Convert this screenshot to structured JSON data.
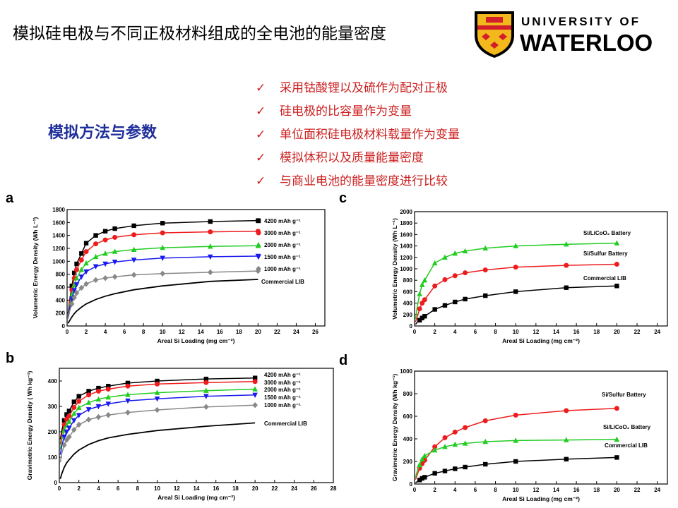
{
  "slide": {
    "title": "模拟硅电极与不同正极材料组成的全电池的能量密度",
    "subtitle": "模拟方法与参数",
    "bullets": [
      "采用钴酸锂以及硫作为配对正极",
      "硅电极的比容量作为变量",
      "单位面积硅电极材料载量作为变量",
      "模拟体积以及质量能量密度",
      "与商业电池的能量密度进行比较"
    ],
    "check_mark": "✓",
    "logo": {
      "line1": "UNIVERSITY OF",
      "line2": "WATERLOO",
      "shield_gold": "#f2b81c",
      "shield_red": "#d21f2b",
      "shield_black": "#000000"
    },
    "panel_letters": [
      "a",
      "b",
      "c",
      "d"
    ]
  },
  "chart_data": [
    {
      "type": "line",
      "panel": "a",
      "xlabel": "Areal Si Loading (mg cm⁻²)",
      "ylabel": "Volumetric Energy Density (Wh L⁻¹)",
      "xlim": [
        0,
        27
      ],
      "ylim": [
        0,
        1800
      ],
      "xticks": [
        0,
        2,
        4,
        6,
        8,
        10,
        12,
        14,
        16,
        18,
        20,
        22,
        24,
        26
      ],
      "yticks": [
        0,
        200,
        400,
        600,
        800,
        1000,
        1200,
        1400,
        1600,
        1800
      ],
      "x": [
        0.1,
        0.25,
        0.5,
        0.75,
        1,
        1.5,
        2,
        3,
        4,
        5,
        7,
        10,
        15,
        20
      ],
      "series": [
        {
          "name": "4200 mAh g⁻¹",
          "color": "#000000",
          "marker": "square",
          "values": [
            200,
            380,
            620,
            820,
            960,
            1120,
            1280,
            1400,
            1465,
            1505,
            1550,
            1590,
            1615,
            1630
          ]
        },
        {
          "name": "3000 mAh g⁻¹",
          "color": "#ee1c1c",
          "marker": "circle",
          "values": [
            180,
            340,
            560,
            740,
            870,
            1020,
            1150,
            1270,
            1330,
            1370,
            1410,
            1440,
            1455,
            1465
          ]
        },
        {
          "name": "2000 mAh g⁻¹",
          "color": "#22cc22",
          "marker": "triangle",
          "values": [
            160,
            300,
            480,
            630,
            740,
            870,
            970,
            1070,
            1120,
            1150,
            1180,
            1210,
            1230,
            1240
          ]
        },
        {
          "name": "1500 mAh g⁻¹",
          "color": "#1a1aee",
          "marker": "tridown",
          "values": [
            140,
            270,
            420,
            550,
            640,
            760,
            840,
            920,
            960,
            990,
            1020,
            1050,
            1070,
            1080
          ]
        },
        {
          "name": "1000 mAh g⁻¹",
          "color": "#888888",
          "marker": "diamond",
          "values": [
            110,
            220,
            340,
            440,
            510,
            590,
            650,
            710,
            740,
            760,
            790,
            810,
            830,
            850
          ]
        },
        {
          "name": "Commercial LIB",
          "color": "#000000",
          "marker": "none",
          "values": [
            40,
            80,
            140,
            190,
            230,
            290,
            340,
            410,
            460,
            500,
            560,
            620,
            690,
            720
          ]
        }
      ]
    },
    {
      "type": "line",
      "panel": "b",
      "xlabel": "Areal Si Loading (mg cm⁻²)",
      "ylabel": "Gravimetric Energy Density ( Wh kg⁻¹)",
      "xlim": [
        0,
        28
      ],
      "ylim": [
        0,
        450
      ],
      "xticks": [
        0,
        2,
        4,
        6,
        8,
        10,
        12,
        14,
        16,
        18,
        20,
        22,
        24,
        26,
        28
      ],
      "yticks": [
        0,
        100,
        200,
        300,
        400
      ],
      "x": [
        0.1,
        0.25,
        0.5,
        0.75,
        1,
        1.5,
        2,
        3,
        4,
        5,
        7,
        10,
        15,
        20
      ],
      "series": [
        {
          "name": "4200 mAh g⁻¹",
          "color": "#000000",
          "marker": "square",
          "values": [
            170,
            205,
            245,
            268,
            282,
            318,
            340,
            360,
            372,
            380,
            392,
            400,
            408,
            412
          ]
        },
        {
          "name": "3000 mAh g⁻¹",
          "color": "#ee1c1c",
          "marker": "circle",
          "values": [
            150,
            190,
            228,
            250,
            262,
            296,
            320,
            345,
            360,
            368,
            380,
            388,
            394,
            398
          ]
        },
        {
          "name": "2000 mAh g⁻¹",
          "color": "#22cc22",
          "marker": "triangle",
          "values": [
            130,
            168,
            205,
            225,
            240,
            272,
            295,
            315,
            328,
            336,
            346,
            354,
            362,
            368
          ]
        },
        {
          "name": "1500 mAh g⁻¹",
          "color": "#1a1aee",
          "marker": "tridown",
          "values": [
            110,
            145,
            180,
            200,
            215,
            245,
            265,
            288,
            300,
            310,
            322,
            330,
            340,
            345
          ]
        },
        {
          "name": "1000 mAh g⁻¹",
          "color": "#888888",
          "marker": "diamond",
          "values": [
            80,
            115,
            148,
            168,
            180,
            208,
            228,
            248,
            258,
            266,
            276,
            286,
            298,
            305
          ]
        },
        {
          "name": "Commercial LIB",
          "color": "#000000",
          "marker": "none",
          "values": [
            15,
            35,
            60,
            78,
            90,
            112,
            128,
            150,
            165,
            176,
            190,
            205,
            222,
            235
          ]
        }
      ]
    },
    {
      "type": "line",
      "panel": "c",
      "xlabel": "Areal Si Loading (mg cm⁻²)",
      "ylabel": "Volumetric Energy Density (Wh L⁻¹)",
      "xlim": [
        0,
        25
      ],
      "ylim": [
        0,
        2000
      ],
      "xticks": [
        0,
        2,
        4,
        6,
        8,
        10,
        12,
        14,
        16,
        18,
        20,
        22,
        24
      ],
      "yticks": [
        0,
        200,
        400,
        600,
        800,
        1000,
        1200,
        1400,
        1600,
        1800,
        2000
      ],
      "x": [
        0.1,
        0.25,
        0.5,
        0.75,
        1,
        2,
        3,
        4,
        5,
        7,
        10,
        15,
        20
      ],
      "series": [
        {
          "name": "Si/LiCoO₂ Battery",
          "color": "#22cc22",
          "marker": "triangle",
          "values": [
            120,
            320,
            560,
            720,
            800,
            1100,
            1200,
            1270,
            1310,
            1360,
            1400,
            1430,
            1450
          ]
        },
        {
          "name": "Si/Sulfur Battery",
          "color": "#ee1c1c",
          "marker": "circle",
          "values": [
            70,
            150,
            300,
            400,
            460,
            700,
            810,
            880,
            930,
            980,
            1030,
            1060,
            1080
          ]
        },
        {
          "name": "Commercial LIB",
          "color": "#000000",
          "marker": "square",
          "values": [
            30,
            60,
            100,
            140,
            170,
            290,
            360,
            420,
            470,
            530,
            600,
            670,
            700
          ]
        }
      ]
    },
    {
      "type": "line",
      "panel": "d",
      "xlabel": "Areal Si Loading (mg cm⁻²)",
      "ylabel": "Gravimetric Energy Density (Wh kg⁻¹)",
      "xlim": [
        0,
        25
      ],
      "ylim": [
        0,
        1000
      ],
      "xticks": [
        0,
        2,
        4,
        6,
        8,
        10,
        12,
        14,
        16,
        18,
        20,
        22,
        24
      ],
      "yticks": [
        0,
        200,
        400,
        600,
        800,
        1000
      ],
      "x": [
        0.1,
        0.25,
        0.5,
        0.75,
        1,
        2,
        3,
        4,
        5,
        7,
        10,
        15,
        20
      ],
      "series": [
        {
          "name": "Si/Sulfur Battery",
          "color": "#ee1c1c",
          "marker": "circle",
          "values": [
            40,
            80,
            140,
            180,
            210,
            330,
            410,
            460,
            500,
            560,
            610,
            650,
            670
          ]
        },
        {
          "name": "Si/LiCoO₂ Battery",
          "color": "#22cc22",
          "marker": "triangle",
          "values": [
            60,
            110,
            170,
            220,
            250,
            300,
            330,
            350,
            360,
            375,
            385,
            390,
            395
          ]
        },
        {
          "name": "Commercial LIB",
          "color": "#000000",
          "marker": "square",
          "values": [
            10,
            20,
            35,
            50,
            60,
            95,
            115,
            135,
            150,
            175,
            200,
            220,
            235
          ]
        }
      ]
    }
  ]
}
